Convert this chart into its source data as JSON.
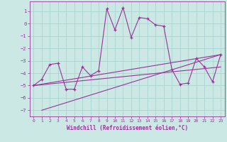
{
  "xlabel": "Windchill (Refroidissement éolien,°C)",
  "background_color": "#cce8e4",
  "grid_color": "#aad4d0",
  "line_color": "#993399",
  "spine_color": "#993399",
  "xlim": [
    -0.5,
    23.5
  ],
  "ylim": [
    -7.5,
    1.8
  ],
  "yticks": [
    1,
    0,
    -1,
    -2,
    -3,
    -4,
    -5,
    -6,
    -7
  ],
  "xticks": [
    0,
    1,
    2,
    3,
    4,
    5,
    6,
    7,
    8,
    9,
    10,
    11,
    12,
    13,
    14,
    15,
    16,
    17,
    18,
    19,
    20,
    21,
    22,
    23
  ],
  "main_x": [
    0,
    1,
    2,
    3,
    4,
    5,
    6,
    7,
    8,
    9,
    10,
    11,
    12,
    13,
    14,
    15,
    16,
    17,
    18,
    19,
    20,
    21,
    22,
    23
  ],
  "main_y": [
    -5.0,
    -4.5,
    -3.3,
    -3.2,
    -5.3,
    -5.3,
    -3.5,
    -4.2,
    -3.8,
    1.2,
    -0.5,
    1.3,
    -1.1,
    0.5,
    0.4,
    -0.1,
    -0.2,
    -3.7,
    -4.9,
    -4.8,
    -2.8,
    -3.5,
    -4.7,
    -2.5
  ],
  "line1_x": [
    0,
    23
  ],
  "line1_y": [
    -5.0,
    -3.5
  ],
  "line2_x": [
    0,
    23
  ],
  "line2_y": [
    -5.0,
    -2.5
  ],
  "line3_x": [
    1,
    23
  ],
  "line3_y": [
    -7.0,
    -2.5
  ]
}
